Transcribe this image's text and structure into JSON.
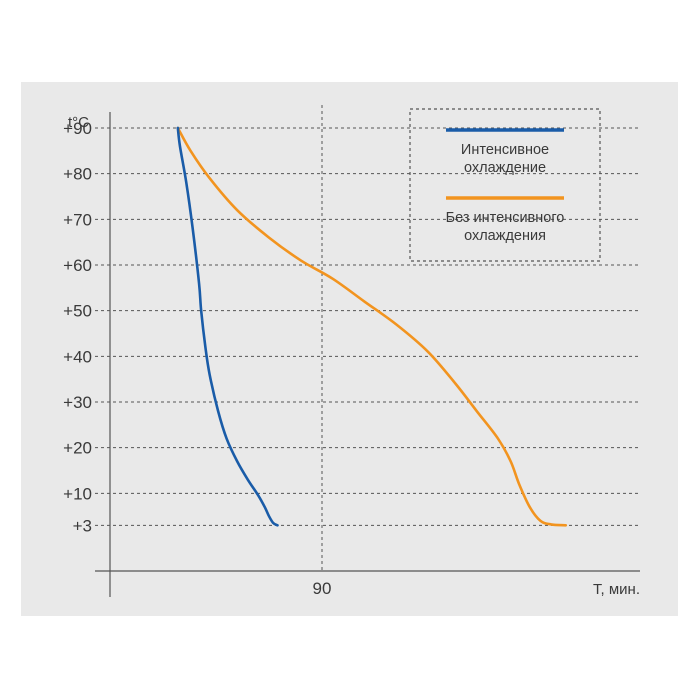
{
  "chart_data": {
    "type": "line",
    "title": "",
    "xlabel": "T, мин.",
    "ylabel": "t°C",
    "xlim": [
      -10,
      240
    ],
    "ylim": [
      -7,
      97
    ],
    "x_ticks": [
      {
        "value": 90,
        "label": "90"
      }
    ],
    "y_ticks": [
      {
        "value": 90,
        "label": "+90"
      },
      {
        "value": 80,
        "label": "+80"
      },
      {
        "value": 70,
        "label": "+70"
      },
      {
        "value": 60,
        "label": "+60"
      },
      {
        "value": 50,
        "label": "+50"
      },
      {
        "value": 40,
        "label": "+40"
      },
      {
        "value": 30,
        "label": "+30"
      },
      {
        "value": 20,
        "label": "+20"
      },
      {
        "value": 10,
        "label": "+10"
      },
      {
        "value": 3,
        "label": "+3"
      }
    ],
    "grid": true,
    "legend_position": "top-right",
    "series": [
      {
        "name": "Интенсивное охлаждение",
        "color": "#1a5ca8",
        "points": [
          [
            22,
            90
          ],
          [
            23,
            86
          ],
          [
            26,
            78
          ],
          [
            29,
            68
          ],
          [
            32,
            56
          ],
          [
            33,
            50
          ],
          [
            35,
            42
          ],
          [
            37,
            36
          ],
          [
            41,
            28
          ],
          [
            45,
            22
          ],
          [
            50,
            17
          ],
          [
            55,
            13
          ],
          [
            60,
            9.5
          ],
          [
            63,
            7
          ],
          [
            65,
            5
          ],
          [
            67,
            3.5
          ],
          [
            69,
            3
          ]
        ]
      },
      {
        "name": "Без интенсивного охлаждения",
        "color": "#f2941f",
        "points": [
          [
            22,
            90
          ],
          [
            28,
            85
          ],
          [
            37,
            79
          ],
          [
            50,
            72
          ],
          [
            65,
            66
          ],
          [
            80,
            61
          ],
          [
            95,
            57
          ],
          [
            110,
            52
          ],
          [
            125,
            47
          ],
          [
            140,
            41
          ],
          [
            153,
            34
          ],
          [
            163,
            28
          ],
          [
            173,
            22
          ],
          [
            179,
            17
          ],
          [
            183,
            12
          ],
          [
            188,
            7
          ],
          [
            193,
            4
          ],
          [
            198,
            3.2
          ],
          [
            205,
            3
          ]
        ]
      }
    ]
  }
}
